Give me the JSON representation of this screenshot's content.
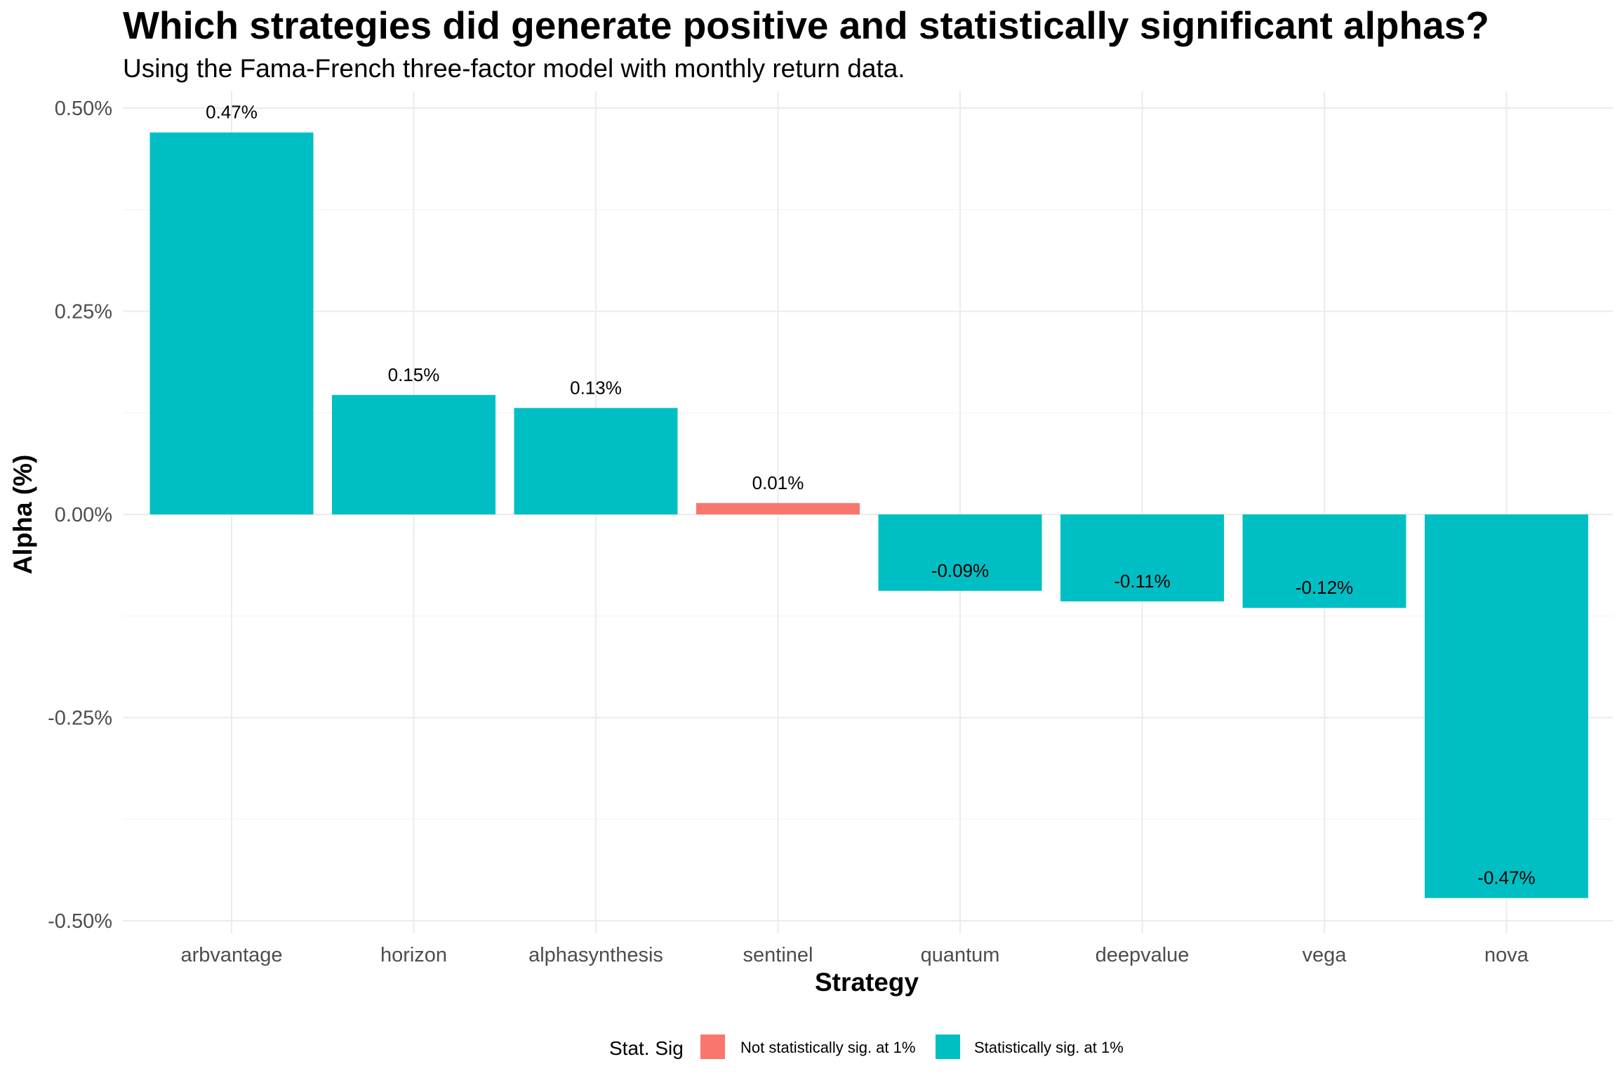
{
  "chart_data": {
    "type": "bar",
    "title": "Which strategies did generate positive and statistically significant alphas?",
    "subtitle": "Using the Fama-French three-factor model with monthly return data.",
    "xlabel": "Strategy",
    "ylabel": "Alpha (%)",
    "ylim": [
      -0.5,
      0.5
    ],
    "yticks": [
      0.5,
      0.25,
      0.0,
      -0.25,
      -0.5
    ],
    "ytick_labels": [
      "0.50%",
      "0.25%",
      "0.00%",
      "-0.25%",
      "-0.50%"
    ],
    "grid": true,
    "legend_position": "bottom",
    "categories": [
      "arbvantage",
      "horizon",
      "alphasynthesis",
      "sentinel",
      "quantum",
      "deepvalue",
      "vega",
      "nova"
    ],
    "values": [
      0.47,
      0.147,
      0.131,
      0.014,
      -0.094,
      -0.107,
      -0.115,
      -0.472
    ],
    "data_labels": [
      "0.47%",
      "0.15%",
      "0.13%",
      "0.01%",
      "-0.09%",
      "-0.11%",
      "-0.12%",
      "-0.47%"
    ],
    "groups": [
      "Statistically sig. at 1%",
      "Statistically sig. at 1%",
      "Statistically sig. at 1%",
      "Not statistically sig. at 1%",
      "Statistically sig. at 1%",
      "Statistically sig. at 1%",
      "Statistically sig. at 1%",
      "Statistically sig. at 1%"
    ],
    "legend": {
      "title": "Stat. Sig",
      "entries": [
        {
          "label": "Not statistically sig. at 1%",
          "color": "#F8766D"
        },
        {
          "label": "Statistically sig. at 1%",
          "color": "#00BFC4"
        }
      ]
    }
  }
}
